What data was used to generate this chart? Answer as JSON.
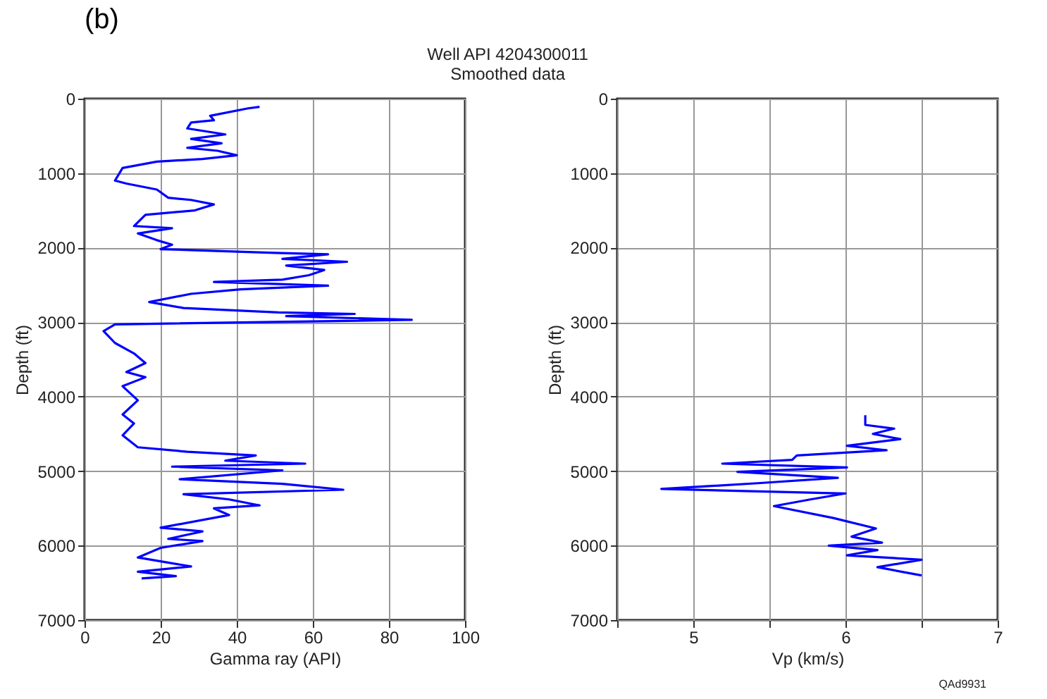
{
  "chart_data": [
    {
      "type": "line",
      "title": "Well API 4204300011",
      "subtitle": "Smoothed data",
      "annotations": [
        "(b)",
        "QAd9931"
      ],
      "xlabel": "Gamma ray (API)",
      "ylabel": "Depth (ft)",
      "xlim": [
        0,
        100
      ],
      "xticks": [
        0,
        20,
        40,
        60,
        80,
        100
      ],
      "ylim": [
        7000,
        0
      ],
      "yticks": [
        0,
        1000,
        2000,
        3000,
        4000,
        5000,
        6000,
        7000
      ],
      "grid": true,
      "series": [
        {
          "color": "#0000ff",
          "x": [
            46,
            43,
            33,
            34,
            28,
            27,
            37,
            28,
            36,
            27,
            35,
            40,
            31,
            19,
            10,
            8,
            11,
            19,
            22,
            28,
            34,
            29,
            16,
            13,
            23,
            14,
            19,
            23,
            20,
            50,
            64,
            52,
            69,
            53,
            63,
            59,
            52,
            34,
            64,
            41,
            28,
            17,
            26,
            51,
            71,
            53,
            86,
            8,
            5,
            8,
            13,
            16,
            11,
            16,
            10,
            14,
            10,
            13,
            10,
            14,
            27,
            45,
            37,
            58,
            23,
            52,
            25,
            52,
            68,
            26,
            38,
            46,
            34,
            38,
            20,
            31,
            22,
            31,
            20,
            14,
            28,
            14,
            24,
            15
          ],
          "values": [
            110,
            130,
            230,
            290,
            320,
            400,
            480,
            540,
            600,
            660,
            700,
            760,
            810,
            845,
            930,
            1100,
            1140,
            1220,
            1330,
            1360,
            1420,
            1500,
            1560,
            1710,
            1740,
            1810,
            1900,
            1960,
            2020,
            2070,
            2090,
            2150,
            2190,
            2240,
            2300,
            2370,
            2430,
            2460,
            2510,
            2560,
            2620,
            2730,
            2810,
            2870,
            2890,
            2920,
            2970,
            3030,
            3120,
            3280,
            3420,
            3550,
            3670,
            3740,
            3860,
            4050,
            4240,
            4360,
            4520,
            4680,
            4740,
            4790,
            4860,
            4900,
            4940,
            4990,
            5110,
            5170,
            5250,
            5310,
            5380,
            5460,
            5500,
            5590,
            5760,
            5810,
            5910,
            5940,
            6030,
            6160,
            6280,
            6350,
            6410,
            6440
          ]
        }
      ]
    },
    {
      "type": "line",
      "xlabel": "Vp (km/s)",
      "ylabel": "Depth (ft)",
      "xlim": [
        4.5,
        7
      ],
      "xticks": [
        {
          "value": 4.5,
          "label": null
        },
        5,
        {
          "value": 5.5,
          "label": null
        },
        6,
        {
          "value": 6.5,
          "label": null
        },
        7
      ],
      "ylim": [
        7000,
        0
      ],
      "yticks": [
        0,
        1000,
        2000,
        3000,
        4000,
        5000,
        6000,
        7000
      ],
      "grid": true,
      "series": [
        {
          "color": "#0000ff",
          "x": [
            6.13,
            6.13,
            6.32,
            6.18,
            6.36,
            6.01,
            6.27,
            5.68,
            5.65,
            5.19,
            6.01,
            5.29,
            5.95,
            5.44,
            4.79,
            6.0,
            5.77,
            5.53,
            5.92,
            6.2,
            6.04,
            6.24,
            5.89,
            6.21,
            6.01,
            6.5,
            6.21,
            6.5
          ],
          "values": [
            4250,
            4380,
            4430,
            4500,
            4570,
            4660,
            4720,
            4790,
            4850,
            4900,
            4950,
            5010,
            5090,
            5160,
            5240,
            5300,
            5380,
            5470,
            5630,
            5770,
            5880,
            5960,
            6000,
            6060,
            6130,
            6190,
            6290,
            6400
          ]
        }
      ]
    }
  ]
}
